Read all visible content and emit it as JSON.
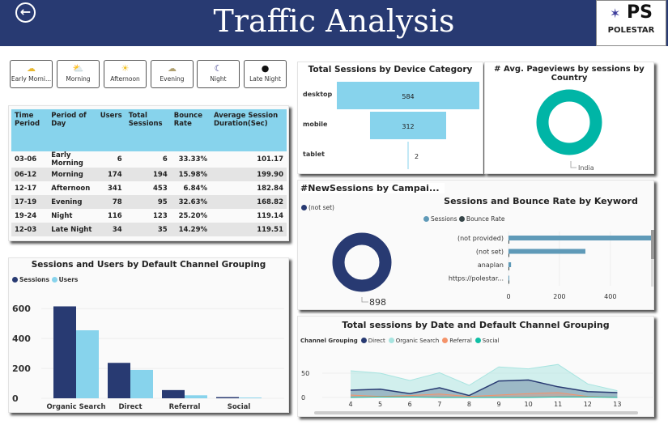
{
  "header": {
    "title": "Traffic Analysis",
    "back_icon": "back-arrow-icon",
    "logo_text": "POLESTAR",
    "logo_letters": "PS"
  },
  "time_buttons": [
    {
      "label": "Early Morni...",
      "icon": "sunrise-icon",
      "glyph": "☁"
    },
    {
      "label": "Morning",
      "icon": "sun-cloud-icon",
      "glyph": "⛅"
    },
    {
      "label": "Afternoon",
      "icon": "sun-icon",
      "glyph": "☀"
    },
    {
      "label": "Evening",
      "icon": "sunset-icon",
      "glyph": "☁"
    },
    {
      "label": "Night",
      "icon": "moon-cloud-icon",
      "glyph": "☾"
    },
    {
      "label": "Late Night",
      "icon": "dark-moon-icon",
      "glyph": "●"
    }
  ],
  "table": {
    "headers": [
      "Time Period",
      "Period of Day",
      "Users",
      "Total Sessions",
      "Bounce Rate",
      "Average Session Duration(Sec)"
    ],
    "rows": [
      [
        "03-06",
        "Early Morning",
        "6",
        "6",
        "33.33%",
        "101.17"
      ],
      [
        "06-12",
        "Morning",
        "174",
        "194",
        "15.98%",
        "199.90"
      ],
      [
        "12-17",
        "Afternoon",
        "341",
        "453",
        "6.84%",
        "182.84"
      ],
      [
        "17-19",
        "Evening",
        "78",
        "95",
        "32.63%",
        "168.82"
      ],
      [
        "19-24",
        "Night",
        "116",
        "123",
        "25.20%",
        "119.14"
      ],
      [
        "12-03",
        "Late Night",
        "34",
        "35",
        "14.29%",
        "119.51"
      ]
    ]
  },
  "colors": {
    "navy": "#283a72",
    "light_blue": "#87d3ec",
    "teal": "#00b5a6",
    "keyword_bar": "#5f9ab8",
    "organic": "#a8e4e0",
    "referral": "#f4936a",
    "social": "#0fbfa5"
  },
  "chart_data": [
    {
      "type": "bar",
      "title": "Sessions and Users by Default Channel Grouping",
      "categories": [
        "Organic Search",
        "Direct",
        "Referral",
        "Social"
      ],
      "series": [
        {
          "name": "Sessions",
          "values": [
            615,
            237,
            55,
            8
          ]
        },
        {
          "name": "Users",
          "values": [
            455,
            190,
            20,
            5
          ]
        }
      ],
      "ylim": [
        0,
        650
      ],
      "yticks": [
        0,
        200,
        400,
        600
      ],
      "legend": "top-left",
      "grid": true
    },
    {
      "type": "bar",
      "orientation": "horizontal",
      "title": "Total Sessions by Device Category",
      "categories": [
        "desktop",
        "mobile",
        "tablet"
      ],
      "values": [
        584,
        312,
        2
      ],
      "data_labels": [
        "584",
        "312",
        "2"
      ]
    },
    {
      "type": "pie",
      "subtype": "donut",
      "title": "# Avg. Pageviews by sessions by Country",
      "categories": [
        "India"
      ],
      "values": [
        1
      ]
    },
    {
      "type": "pie",
      "subtype": "donut",
      "title": "#NewSessions by Campai...",
      "categories": [
        "(not set)"
      ],
      "values": [
        898
      ],
      "data_labels": [
        "898"
      ],
      "legend": "top-left"
    },
    {
      "type": "bar",
      "orientation": "horizontal",
      "title": "Sessions and Bounce Rate by Keyword",
      "categories": [
        "(not provided)",
        "(not set)",
        "anaplan",
        "https://polestar..."
      ],
      "series": [
        {
          "name": "Sessions",
          "values": [
            595,
            302,
            10,
            2
          ]
        },
        {
          "name": "Bounce Rate",
          "values": [
            1,
            1,
            1,
            1
          ]
        }
      ],
      "xlim": [
        0,
        620
      ],
      "xticks": [
        0,
        200,
        400,
        600
      ],
      "legend": "top"
    },
    {
      "type": "area",
      "title": "Total sessions by Date and Default Channel Grouping",
      "legend_title": "Channel Grouping",
      "x": [
        4,
        5,
        6,
        7,
        8,
        9,
        10,
        11,
        12,
        13
      ],
      "series": [
        {
          "name": "Direct",
          "values": [
            15,
            17,
            8,
            20,
            4,
            34,
            36,
            22,
            12,
            10
          ]
        },
        {
          "name": "Organic Search",
          "values": [
            55,
            50,
            35,
            51,
            25,
            63,
            59,
            68,
            28,
            14
          ]
        },
        {
          "name": "Referral",
          "values": [
            5,
            2,
            4,
            7,
            2,
            5,
            8,
            10,
            2,
            0
          ]
        },
        {
          "name": "Social",
          "values": [
            0,
            1,
            1,
            0,
            0,
            0,
            0,
            1,
            1,
            0
          ]
        }
      ],
      "ylim": [
        0,
        75
      ],
      "yticks": [
        0,
        50
      ],
      "legend": "top-left"
    }
  ]
}
